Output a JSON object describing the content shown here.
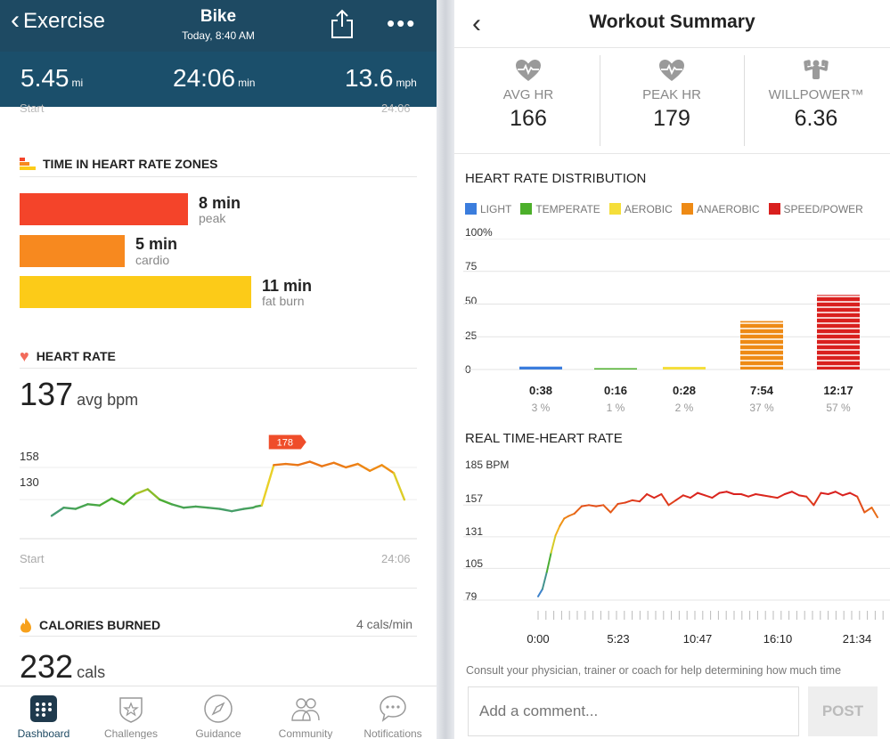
{
  "left": {
    "header": {
      "back_label": "Exercise",
      "title": "Bike",
      "subtitle": "Today, 8:40 AM"
    },
    "stats": [
      {
        "value": "5.45",
        "unit": "mi"
      },
      {
        "value": "24:06",
        "unit": "min"
      },
      {
        "value": "13.6",
        "unit": "mph"
      }
    ],
    "cut_start": "Start",
    "cut_end": "24:06",
    "zones": {
      "title": "TIME IN HEART RATE ZONES",
      "items": [
        {
          "value": "8 min",
          "label": "peak",
          "minutes": 8,
          "color": "#f4442a"
        },
        {
          "value": "5 min",
          "label": "cardio",
          "minutes": 5,
          "color": "#f7891f"
        },
        {
          "value": "11 min",
          "label": "fat burn",
          "minutes": 11,
          "color": "#fccb18"
        }
      ]
    },
    "heart_rate": {
      "title": "HEART RATE",
      "avg_value": "137",
      "avg_unit": "avg bpm",
      "y_labels": [
        "158",
        "130"
      ],
      "peak_badge": "178",
      "x_start": "Start",
      "x_end": "24:06"
    },
    "calories": {
      "title": "CALORIES BURNED",
      "rate": "4 cals/min",
      "value": "232",
      "unit": "cals"
    },
    "tabs": [
      {
        "label": "Dashboard",
        "icon": "dashboard-icon",
        "active": true
      },
      {
        "label": "Challenges",
        "icon": "challenges-icon",
        "active": false
      },
      {
        "label": "Guidance",
        "icon": "compass-icon",
        "active": false
      },
      {
        "label": "Community",
        "icon": "community-icon",
        "active": false
      },
      {
        "label": "Notifications",
        "icon": "chat-bubble-icon",
        "active": false
      }
    ]
  },
  "right": {
    "title": "Workout Summary",
    "stats": [
      {
        "label": "AVG HR",
        "value": "166",
        "icon": "heart-pulse-icon"
      },
      {
        "label": "PEAK HR",
        "value": "179",
        "icon": "heart-pulse-icon"
      },
      {
        "label": "WILLPOWER™",
        "value": "6.36",
        "icon": "flexed-muscle-icon"
      }
    ],
    "distribution_title": "HEART RATE DISTRIBUTION",
    "legend": [
      {
        "label": "LIGHT",
        "color": "#3b7ddd"
      },
      {
        "label": "TEMPERATE",
        "color": "#4caf2a"
      },
      {
        "label": "AEROBIC",
        "color": "#f5de3a"
      },
      {
        "label": "ANAEROBIC",
        "color": "#ee8a15"
      },
      {
        "label": "SPEED/POWER",
        "color": "#d9201e"
      }
    ],
    "realtime_title": "REAL TIME-HEART RATE",
    "realtime_y_labels": [
      "185 BPM",
      "157",
      "131",
      "105",
      "79"
    ],
    "realtime_x_labels": [
      "0:00",
      "5:23",
      "10:47",
      "16:10",
      "21:34"
    ],
    "consult_text": "Consult your physician, trainer or coach for help determining how much time",
    "comment_placeholder": "Add a comment...",
    "post_label": "POST"
  },
  "chart_data": [
    {
      "type": "bar",
      "title": "HEART RATE DISTRIBUTION",
      "categories": [
        "LIGHT",
        "TEMPERATE",
        "AEROBIC",
        "ANAEROBIC",
        "SPEED/POWER"
      ],
      "values": [
        3,
        1,
        2,
        37,
        57
      ],
      "times": [
        "0:38",
        "0:16",
        "0:28",
        "7:54",
        "12:17"
      ],
      "pct_labels": [
        "3 %",
        "1 %",
        "2 %",
        "37 %",
        "57 %"
      ],
      "y_tick_labels": [
        "100%",
        "75",
        "50",
        "25",
        "0"
      ],
      "ylim": [
        0,
        100
      ],
      "colors": [
        "#3b7ddd",
        "#4caf2a",
        "#f5de3a",
        "#ee8a15",
        "#d9201e"
      ]
    },
    {
      "type": "line",
      "title": "REAL TIME-HEART RATE",
      "ylim": [
        79,
        185
      ],
      "xlim": [
        0,
        24
      ],
      "series": [
        {
          "x": [
            0,
            0.3,
            0.6,
            0.9,
            1.2,
            1.5,
            1.8,
            2.1,
            2.5,
            3,
            3.5,
            4,
            4.5,
            5,
            5.5,
            6,
            6.5,
            7,
            7.5,
            8,
            8.5,
            9,
            9.5,
            10,
            10.5,
            11,
            11.5,
            12,
            12.5,
            13,
            13.5,
            14,
            14.5,
            15,
            15.5,
            16,
            16.5,
            17,
            17.5,
            18,
            18.5,
            19,
            19.5,
            20,
            20.5,
            21,
            21.5,
            22,
            22.5,
            23,
            23.4
          ],
          "values": [
            82,
            88,
            102,
            118,
            132,
            140,
            146,
            148,
            150,
            156,
            157,
            156,
            157,
            151,
            158,
            159,
            161,
            160,
            166,
            163,
            166,
            157,
            161,
            165,
            163,
            167,
            165,
            163,
            167,
            168,
            166,
            166,
            164,
            166,
            165,
            164,
            163,
            166,
            168,
            165,
            164,
            157,
            167,
            166,
            168,
            165,
            167,
            164,
            151,
            155,
            147
          ]
        }
      ]
    },
    {
      "type": "line",
      "title": "HEART RATE",
      "ylim": [
        100,
        185
      ],
      "series": [
        {
          "x": [
            0,
            0.8,
            1.6,
            2.4,
            3.2,
            4.0,
            4.8,
            5.6,
            6.4,
            7.2,
            8.0,
            8.8,
            9.6,
            10.4,
            11.2,
            12.0,
            12.8,
            13.4,
            13.6,
            14.0,
            14.8,
            15.6,
            16.4,
            17.2,
            18.0,
            18.8,
            19.6,
            20.4,
            21.2,
            22.0,
            22.8,
            23.5
          ],
          "values": [
            116,
            123,
            122,
            126,
            125,
            131,
            126,
            135,
            139,
            130,
            126,
            123,
            124,
            123,
            122,
            120,
            122,
            123,
            124,
            125,
            160,
            161,
            160,
            163,
            159,
            162,
            158,
            161,
            155,
            160,
            153,
            130
          ]
        }
      ]
    }
  ]
}
